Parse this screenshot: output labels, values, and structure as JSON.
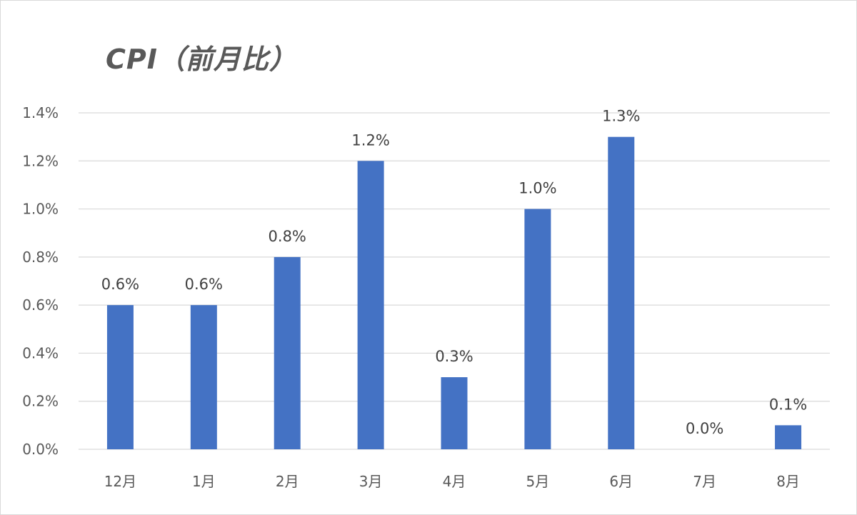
{
  "chart_data": {
    "type": "bar",
    "title": "CPI（前月比）",
    "categories": [
      "12月",
      "1月",
      "2月",
      "3月",
      "4月",
      "5月",
      "6月",
      "7月",
      "8月"
    ],
    "values": [
      0.6,
      0.6,
      0.8,
      1.2,
      0.3,
      1.0,
      1.3,
      0.0,
      0.1
    ],
    "data_labels": [
      "0.6%",
      "0.6%",
      "0.8%",
      "1.2%",
      "0.3%",
      "1.0%",
      "1.3%",
      "0.0%",
      "0.1%"
    ],
    "y_ticks": [
      "0.0%",
      "0.2%",
      "0.4%",
      "0.6%",
      "0.8%",
      "1.0%",
      "1.2%",
      "1.4%"
    ],
    "ylim": [
      0,
      1.4
    ],
    "xlabel": "",
    "ylabel": "",
    "grid": true,
    "legend": "none",
    "bar_color": "#4472c4"
  }
}
